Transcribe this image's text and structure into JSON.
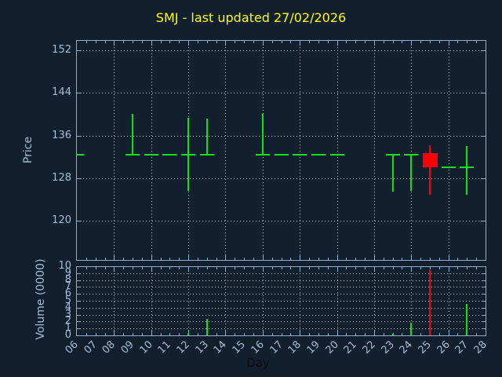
{
  "title": "SMJ - last updated 27/02/2026",
  "price_axis": {
    "label": "Price",
    "tick_labels": [
      "152",
      "144",
      "136",
      "128",
      "120"
    ],
    "ticks": [
      152,
      144,
      136,
      128,
      120
    ]
  },
  "volume_axis": {
    "label": "Volume (0000)",
    "tick_labels": [
      "10",
      "9",
      "8",
      "7",
      "6",
      "5",
      "4",
      "3",
      "2",
      "1",
      "0"
    ],
    "ticks": [
      10,
      9,
      8,
      7,
      6,
      5,
      4,
      3,
      2,
      1,
      0
    ]
  },
  "x_axis": {
    "label": "Day",
    "tick_labels": [
      "06",
      "07",
      "08",
      "09",
      "10",
      "11",
      "12",
      "13",
      "14",
      "15",
      "16",
      "17",
      "18",
      "19",
      "20",
      "21",
      "22",
      "23",
      "24",
      "25",
      "26",
      "27",
      "28"
    ],
    "ticks": [
      6,
      7,
      8,
      9,
      10,
      11,
      12,
      13,
      14,
      15,
      16,
      17,
      18,
      19,
      20,
      21,
      22,
      23,
      24,
      25,
      26,
      27,
      28
    ]
  },
  "colors": {
    "background": "#121f2e",
    "axis": "#8fafc9",
    "tick_text": "#a6bdd4",
    "grid": "#b9c3cd",
    "title": "#ffff00",
    "up": "#0ce60c",
    "down": "#ff0000",
    "day_label": "#0a0d10"
  },
  "chart_data": [
    {
      "type": "candlestick",
      "title": "SMJ - last updated 27/02/2026",
      "xlabel": "Day",
      "ylabel": "Price",
      "xlim": [
        6,
        28
      ],
      "ylim": [
        112.5,
        154
      ],
      "yticks": [
        152,
        144,
        136,
        128,
        120
      ],
      "grid": true,
      "x_gridline_days": [
        8,
        10,
        12,
        14,
        16,
        18,
        20,
        22,
        24,
        26
      ],
      "candles": [
        {
          "day": 6,
          "open": 132.4,
          "high": 132.4,
          "low": 132.4,
          "close": 132.4,
          "direction": "up"
        },
        {
          "day": 9,
          "open": 132.4,
          "high": 140.0,
          "low": 132.4,
          "close": 132.4,
          "direction": "up"
        },
        {
          "day": 10,
          "open": 132.4,
          "high": 132.4,
          "low": 132.4,
          "close": 132.4,
          "direction": "up"
        },
        {
          "day": 11,
          "open": 132.4,
          "high": 132.4,
          "low": 132.4,
          "close": 132.4,
          "direction": "up"
        },
        {
          "day": 12,
          "open": 132.4,
          "high": 139.3,
          "low": 125.6,
          "close": 132.4,
          "direction": "up"
        },
        {
          "day": 13,
          "open": 132.4,
          "high": 139.1,
          "low": 132.4,
          "close": 132.4,
          "direction": "up"
        },
        {
          "day": 16,
          "open": 132.4,
          "high": 140.0,
          "low": 132.4,
          "close": 132.4,
          "direction": "up"
        },
        {
          "day": 17,
          "open": 132.4,
          "high": 132.4,
          "low": 132.4,
          "close": 132.4,
          "direction": "up"
        },
        {
          "day": 18,
          "open": 132.4,
          "high": 132.4,
          "low": 132.4,
          "close": 132.4,
          "direction": "up"
        },
        {
          "day": 19,
          "open": 132.4,
          "high": 132.4,
          "low": 132.4,
          "close": 132.4,
          "direction": "up"
        },
        {
          "day": 20,
          "open": 132.4,
          "high": 132.4,
          "low": 132.4,
          "close": 132.4,
          "direction": "up"
        },
        {
          "day": 23,
          "open": 132.4,
          "high": 132.4,
          "low": 125.5,
          "close": 132.4,
          "direction": "up"
        },
        {
          "day": 24,
          "open": 132.4,
          "high": 132.4,
          "low": 125.6,
          "close": 132.4,
          "direction": "up"
        },
        {
          "day": 25,
          "open": 132.7,
          "high": 134.2,
          "low": 124.9,
          "close": 130.0,
          "direction": "down"
        },
        {
          "day": 26,
          "open": 130.1,
          "high": 130.1,
          "low": 130.1,
          "close": 130.1,
          "direction": "up"
        },
        {
          "day": 27,
          "open": 130.1,
          "high": 134.0,
          "low": 124.9,
          "close": 130.1,
          "direction": "up"
        }
      ]
    },
    {
      "type": "bar",
      "ylabel": "Volume (0000)",
      "xlabel": "Day",
      "xlim": [
        6,
        28
      ],
      "ylim": [
        0,
        10
      ],
      "yticks": [
        10,
        9,
        8,
        7,
        6,
        5,
        4,
        3,
        2,
        1,
        0
      ],
      "grid": true,
      "categories": [
        6,
        9,
        10,
        11,
        12,
        13,
        16,
        17,
        18,
        19,
        20,
        23,
        24,
        25,
        26,
        27
      ],
      "values": [
        0,
        0,
        0,
        0,
        0.3,
        2.4,
        0,
        0,
        0,
        0,
        0,
        0.2,
        1.8,
        9.4,
        0,
        4.6
      ],
      "bar_directions": [
        "up",
        "up",
        "up",
        "up",
        "up",
        "up",
        "up",
        "up",
        "up",
        "up",
        "up",
        "up",
        "up",
        "down",
        "up",
        "up"
      ]
    }
  ]
}
